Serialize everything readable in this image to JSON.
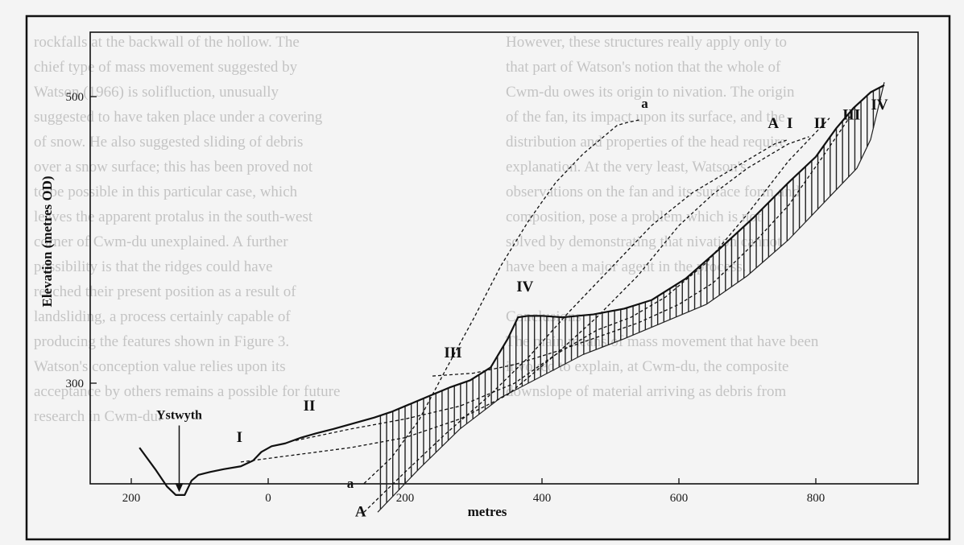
{
  "chart_data": {
    "type": "line",
    "xlabel": "metres",
    "ylabel": "Elevation (metres OD)",
    "xlim": [
      -250,
      980
    ],
    "ylim": [
      170,
      520
    ],
    "x_ticks": [
      {
        "value": -200,
        "label": "200"
      },
      {
        "value": 0,
        "label": "0"
      },
      {
        "value": 200,
        "label": "200"
      },
      {
        "value": 400,
        "label": "400"
      },
      {
        "value": 600,
        "label": "600"
      },
      {
        "value": 800,
        "label": "800"
      }
    ],
    "y_ticks": [
      {
        "value": 300,
        "label": "300"
      },
      {
        "value": 500,
        "label": "500"
      }
    ],
    "grid": false,
    "series": [
      {
        "name": "IV",
        "style": "solid",
        "x": [
          -188,
          -165,
          -148,
          -135,
          -122,
          -112,
          -102,
          -85,
          -65,
          -40,
          -22,
          -10,
          5,
          25,
          48,
          70,
          95,
          125,
          155,
          180,
          205,
          235,
          265,
          295,
          325,
          350,
          365,
          380,
          400,
          430,
          475,
          520,
          560,
          610,
          660,
          710,
          760,
          800,
          830,
          855,
          880,
          900
        ],
        "y": [
          255,
          240,
          228,
          222,
          222,
          232,
          236,
          238,
          240,
          242,
          246,
          252,
          256,
          258,
          262,
          265,
          268,
          272,
          276,
          280,
          285,
          291,
          297,
          302,
          311,
          331,
          346,
          347,
          347,
          346,
          348,
          352,
          358,
          373,
          394,
          416,
          440,
          458,
          478,
          492,
          503,
          508
        ]
      },
      {
        "name": "a",
        "style": "dashed",
        "x": [
          140,
          180,
          220,
          260,
          300,
          340,
          380,
          420,
          460,
          490,
          510,
          525,
          545
        ],
        "y": [
          230,
          248,
          274,
          310,
          345,
          382,
          413,
          440,
          460,
          472,
          480,
          482,
          484
        ]
      },
      {
        "name": "A",
        "style": "dashed",
        "x": [
          140,
          200,
          260,
          320,
          380,
          440,
          500,
          560,
          620,
          680,
          740,
          760
        ],
        "y": [
          210,
          238,
          265,
          290,
          318,
          350,
          380,
          410,
          433,
          450,
          467,
          470
        ]
      },
      {
        "name": "I",
        "style": "dashed",
        "x": [
          -40,
          40,
          120,
          200,
          280,
          350,
          420,
          480,
          540,
          600,
          650,
          700,
          760,
          790
        ],
        "y": [
          245,
          250,
          255,
          262,
          275,
          292,
          320,
          346,
          375,
          410,
          432,
          450,
          467,
          472
        ]
      },
      {
        "name": "II",
        "style": "dashed",
        "x": [
          40,
          120,
          200,
          280,
          360,
          420,
          480,
          530,
          580,
          640,
          700,
          760,
          820
        ],
        "y": [
          260,
          268,
          275,
          284,
          300,
          320,
          337,
          346,
          360,
          384,
          418,
          455,
          485
        ]
      },
      {
        "name": "III",
        "style": "dashed",
        "x": [
          240,
          300,
          360,
          420,
          480,
          540,
          600,
          650,
          700,
          760,
          810,
          850
        ],
        "y": [
          305,
          307,
          313,
          322,
          332,
          342,
          355,
          370,
          393,
          424,
          458,
          486
        ]
      }
    ],
    "bedrock": {
      "style": "hatched",
      "x": [
        160,
        220,
        280,
        340,
        400,
        460,
        520,
        580,
        640,
        700,
        760,
        820,
        860,
        880,
        900
      ],
      "y": [
        210,
        240,
        268,
        290,
        305,
        320,
        331,
        343,
        355,
        375,
        400,
        430,
        450,
        470,
        510
      ]
    },
    "annotations": [
      {
        "text": "Ystwyth",
        "x": -130,
        "y": 275,
        "arrow_to": {
          "x": -130,
          "y": 224
        }
      },
      {
        "text": "I",
        "x": -42,
        "y": 259
      },
      {
        "text": "II",
        "x": 60,
        "y": 281
      },
      {
        "text": "III",
        "x": 270,
        "y": 318
      },
      {
        "text": "IV",
        "x": 375,
        "y": 364
      },
      {
        "text": "a",
        "x": 120,
        "y": 227
      },
      {
        "text": "A",
        "x": 135,
        "y": 207
      },
      {
        "text": "a",
        "x": 550,
        "y": 492
      },
      {
        "text": "A",
        "x": 738,
        "y": 478
      },
      {
        "text": "I",
        "x": 762,
        "y": 478
      },
      {
        "text": "II",
        "x": 806,
        "y": 478
      },
      {
        "text": "III",
        "x": 852,
        "y": 484
      },
      {
        "text": "IV",
        "x": 893,
        "y": 491
      }
    ]
  },
  "background_text": {
    "column_left": [
      "rockfalls at the backwall of the hollow. The",
      "chief type of mass movement suggested by",
      "Watson (1966) is solifluction, unusually",
      "suggested to have taken place under a covering",
      "of snow. He also suggested sliding of debris",
      "over a snow surface; this has been proved not",
      "to be possible in this particular case, which",
      "leaves the apparent protalus in the south-west",
      "corner of Cwm-du unexplained. A further",
      "possibility is that the ridges could have",
      "reached their present position as a result of",
      "landsliding, a process certainly capable of",
      "producing the features shown in Figure 3.",
      "Watson's conception value relies upon its",
      "acceptance by others remains a possible for future",
      "research in Cwm-du."
    ],
    "column_right": [
      "However, these structures really apply only to",
      "that part of Watson's notion that the whole of",
      "Cwm-du owes its origin to nivation. The origin",
      "of the fan, its impact upon its surface, and the",
      "distribution and properties of the head require",
      "explanation. At the very least, Watson's",
      "observations on the fan and its surface form and",
      "composition, pose a problem which is not",
      "solved by demonstrating that nivation cannot",
      "have been a major agent in the process.",
      "",
      "Conclusions",
      "The main means of mass movement that have been",
      "invoked to explain, at Cwm-du, the composite",
      "downslope of material arriving as debris from"
    ]
  }
}
